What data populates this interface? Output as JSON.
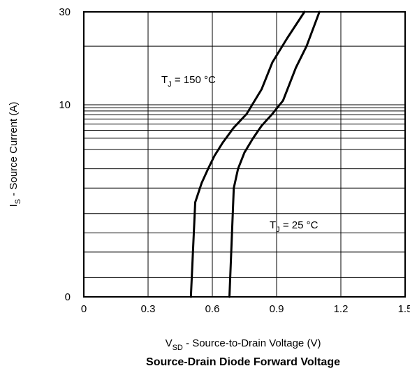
{
  "chart_data": {
    "type": "line",
    "title": "Source-Drain Diode Forward Voltage",
    "xlabel": {
      "main": "V",
      "sub": "SD",
      "rest": " - Source-to-Drain Voltage (V)"
    },
    "ylabel": {
      "main": "I",
      "sub": "S",
      "rest": " - Source Current (A)"
    },
    "xlim": [
      0,
      1.5
    ],
    "ylim_labels": [
      "0",
      "10",
      "30"
    ],
    "x_ticks": [
      "0",
      "0.3",
      "0.6",
      "0.9",
      "1.2",
      "1.5"
    ],
    "grid": true,
    "series": [
      {
        "name": "150 °C",
        "label": {
          "main": "T",
          "sub": "J",
          "rest": " = 150 °C"
        },
        "x": [
          0.5,
          0.52,
          0.55,
          0.58,
          0.61,
          0.65,
          0.7,
          0.76,
          0.83,
          0.88,
          0.95,
          1.03
        ],
        "y": [
          0.0,
          0.3,
          0.6,
          1.0,
          1.6,
          2.6,
          4.4,
          7.2,
          12.0,
          16.5,
          22.0,
          30.0
        ]
      },
      {
        "name": "25 °C",
        "label": {
          "main": "T",
          "sub": "J",
          "rest": " = 25 °C"
        },
        "x": [
          0.68,
          0.7,
          0.72,
          0.75,
          0.79,
          0.83,
          0.88,
          0.93,
          0.99,
          1.04,
          1.1
        ],
        "y": [
          0.0,
          0.5,
          1.0,
          1.8,
          3.0,
          4.7,
          7.2,
          10.5,
          15.5,
          20.0,
          30.0
        ]
      }
    ],
    "colors": {
      "line": "#000000",
      "grid": "#000000"
    }
  }
}
